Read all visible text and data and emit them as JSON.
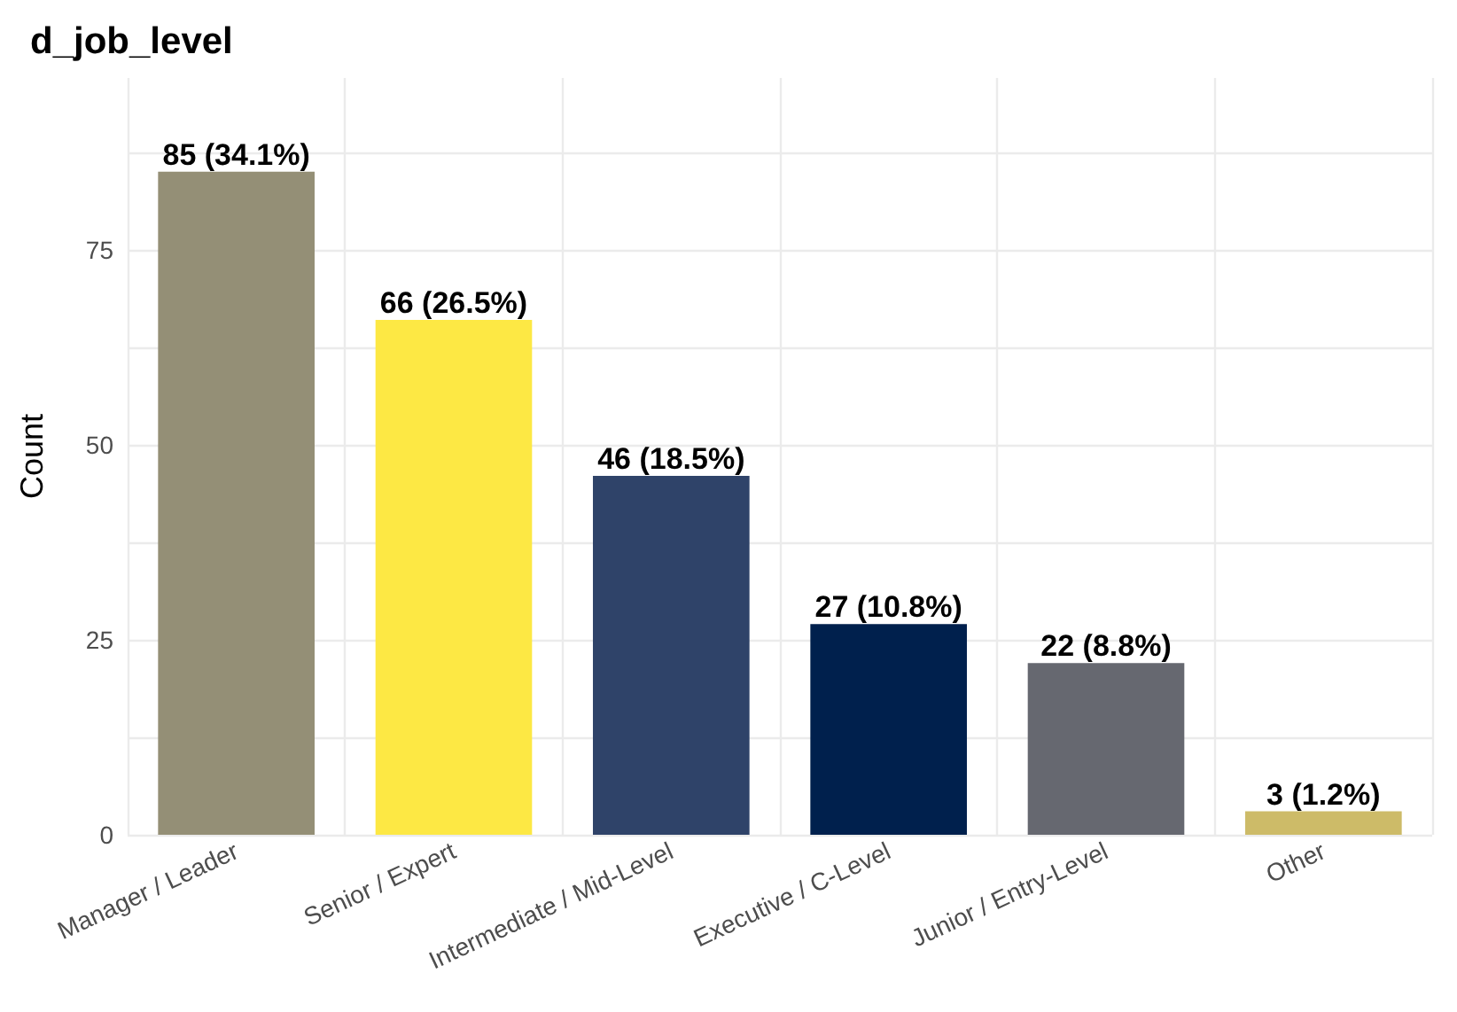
{
  "chart_data": {
    "type": "bar",
    "title": "d_job_level",
    "ylabel": "Count",
    "categories": [
      "Manager / Leader",
      "Senior / Expert",
      "Intermediate / Mid-Level",
      "Executive / C-Level",
      "Junior / Entry-Level",
      "Other"
    ],
    "values": [
      85,
      66,
      46,
      27,
      22,
      3
    ],
    "colors": [
      "#948f76",
      "#fde844",
      "#2f4369",
      "#00204d",
      "#666870",
      "#cdbb68"
    ],
    "value_labels": [
      "85 (34.1%)",
      "66 (26.5%)",
      "46 (18.5%)",
      "27 (10.8%)",
      "22 (8.8%)",
      "3 (1.2%)"
    ],
    "ylim": [
      0,
      97
    ],
    "yticks": [
      0,
      {
        "value": 12.5,
        "label": null
      },
      25,
      {
        "value": 37.5,
        "label": null
      },
      50,
      {
        "value": 62.5,
        "label": null
      },
      75,
      {
        "value": 87.5,
        "label": null
      }
    ],
    "grid": true
  }
}
